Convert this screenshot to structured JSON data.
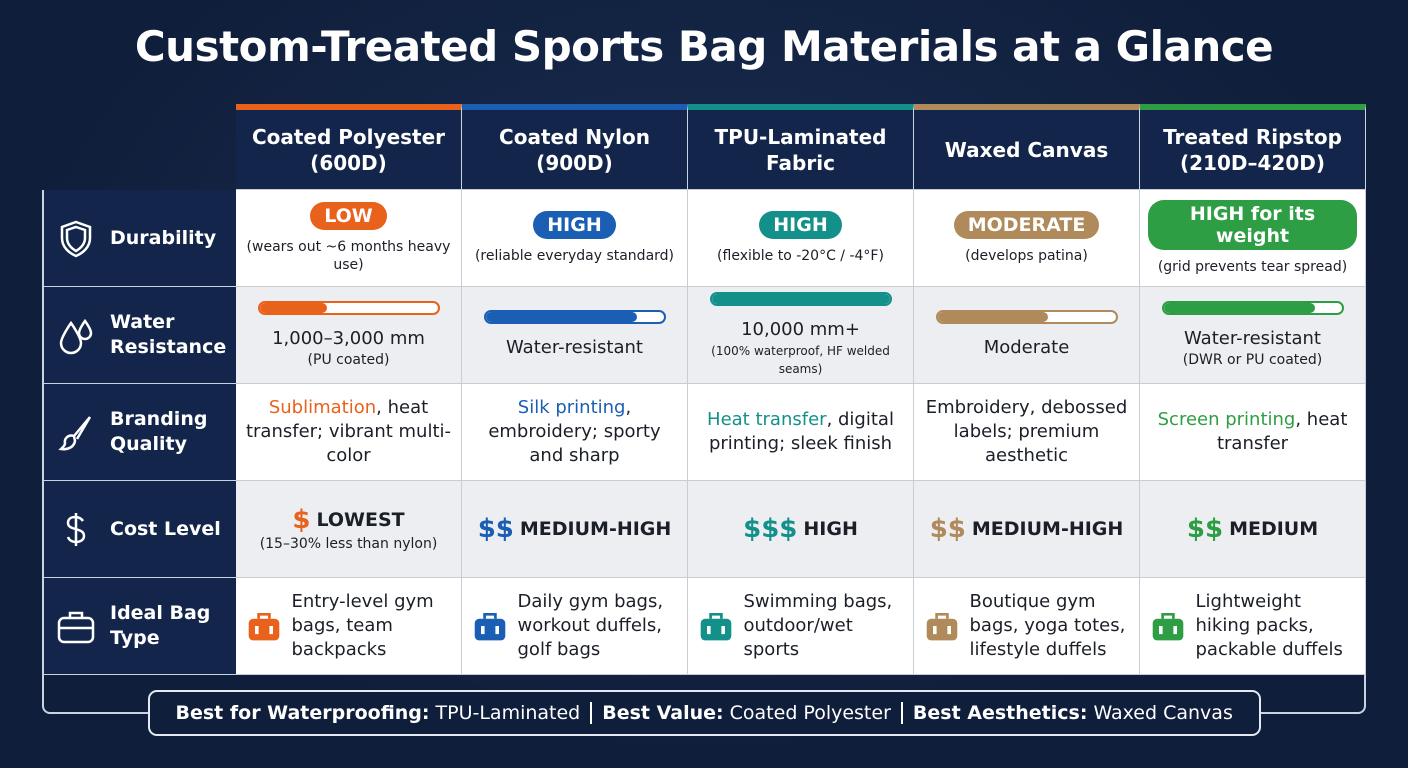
{
  "title": "Custom-Treated Sports Bag Materials at a Glance",
  "columns": [
    {
      "name": "Coated Polyester (600D)",
      "color": "#e8621c"
    },
    {
      "name": "Coated Nylon (900D)",
      "color": "#1a5fb4"
    },
    {
      "name": "TPU-Laminated Fabric",
      "color": "#14908a"
    },
    {
      "name": "Waxed Canvas",
      "color": "#b08a5a"
    },
    {
      "name": "Treated Ripstop (210D–420D)",
      "color": "#2e9e44"
    }
  ],
  "rows": [
    {
      "label": "Durability",
      "cells": [
        {
          "badge": "LOW",
          "note": "(wears out ~6 months heavy use)"
        },
        {
          "badge": "HIGH",
          "note": "(reliable everyday standard)"
        },
        {
          "badge": "HIGH",
          "note": "(flexible to -20°C / -4°F)"
        },
        {
          "badge": "MODERATE",
          "note": "(develops patina)"
        },
        {
          "badge": "HIGH for its weight",
          "note": "(grid prevents tear spread)"
        }
      ]
    },
    {
      "label": "Water Resistance",
      "cells": [
        {
          "level": 38,
          "text": "1,000–3,000 mm",
          "note": "(PU coated)"
        },
        {
          "level": 85,
          "text": "Water-resistant"
        },
        {
          "level": 100,
          "text": "10,000 mm+",
          "note": "(100% waterproof, HF welded seams)"
        },
        {
          "level": 62,
          "text": "Moderate"
        },
        {
          "level": 85,
          "text": "Water-resistant",
          "note": "(DWR or PU coated)"
        }
      ]
    },
    {
      "label": "Branding Quality",
      "cells": [
        {
          "highlight": "Sublimation",
          "rest": ", heat transfer; vibrant multi-color"
        },
        {
          "highlight": "Silk printing",
          "rest": ", embroidery; sporty and sharp"
        },
        {
          "highlight": "Heat transfer",
          "rest": ", digital printing; sleek finish"
        },
        {
          "rest": "Embroidery, debossed labels; premium aesthetic"
        },
        {
          "highlight": "Screen printing",
          "rest": ", heat transfer"
        }
      ]
    },
    {
      "label": "Cost Level",
      "cells": [
        {
          "symbol": "$",
          "level": "LOWEST",
          "note": "(15–30% less than nylon)"
        },
        {
          "symbol": "$$",
          "level": "MEDIUM-HIGH"
        },
        {
          "symbol": "$$$",
          "level": "HIGH"
        },
        {
          "symbol": "$$",
          "level": "MEDIUM-HIGH"
        },
        {
          "symbol": "$$",
          "level": "MEDIUM"
        }
      ]
    },
    {
      "label": "Ideal Bag Type",
      "cells": [
        {
          "text": "Entry-level gym bags, team backpacks"
        },
        {
          "text": "Daily gym bags, workout duffels, golf bags"
        },
        {
          "text": "Swimming bags, outdoor/wet sports"
        },
        {
          "text": "Boutique gym bags, yoga totes, lifestyle duffels"
        },
        {
          "text": "Lightweight hiking packs, packable duffels"
        }
      ]
    }
  ],
  "footer": [
    {
      "label": "Best for Waterproofing:",
      "value": "TPU-Laminated"
    },
    {
      "label": "Best Value:",
      "value": "Coated Polyester"
    },
    {
      "label": "Best Aesthetics:",
      "value": "Waxed Canvas"
    }
  ]
}
